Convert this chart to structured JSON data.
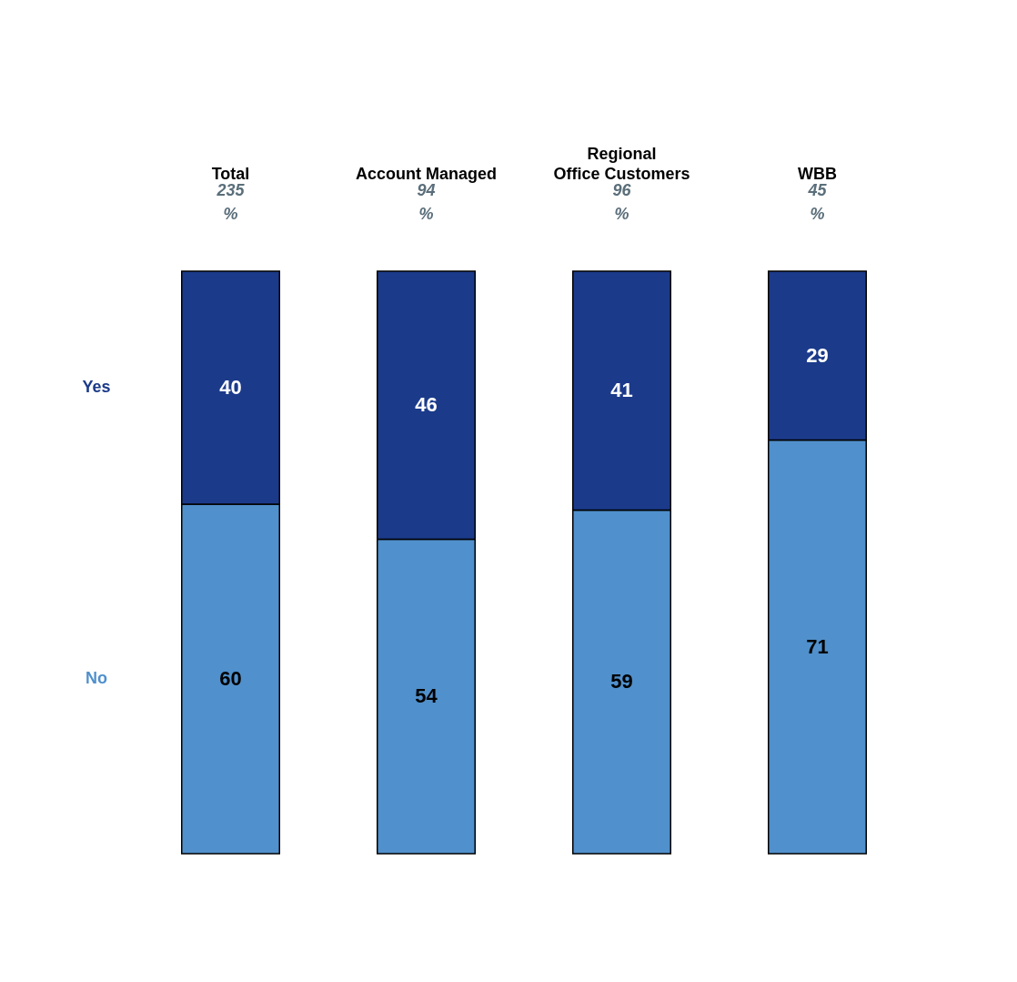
{
  "chart_data": {
    "type": "bar",
    "stacked": true,
    "categories": [
      "Total",
      "Account Managed",
      "Regional Office Customers",
      "WBB"
    ],
    "series": [
      {
        "name": "No",
        "color": "#5090cc",
        "values": [
          60,
          54,
          59,
          71
        ]
      },
      {
        "name": "Yes",
        "color": "#1b3a8a",
        "values": [
          40,
          46,
          41,
          29
        ]
      }
    ],
    "ylim": [
      0,
      100
    ],
    "data_labels": true,
    "legend": "left",
    "tick_labels": "x",
    "grid": false,
    "annotations": [
      "235",
      "94",
      "96",
      "45",
      "%",
      "%",
      "%",
      "%"
    ]
  }
}
